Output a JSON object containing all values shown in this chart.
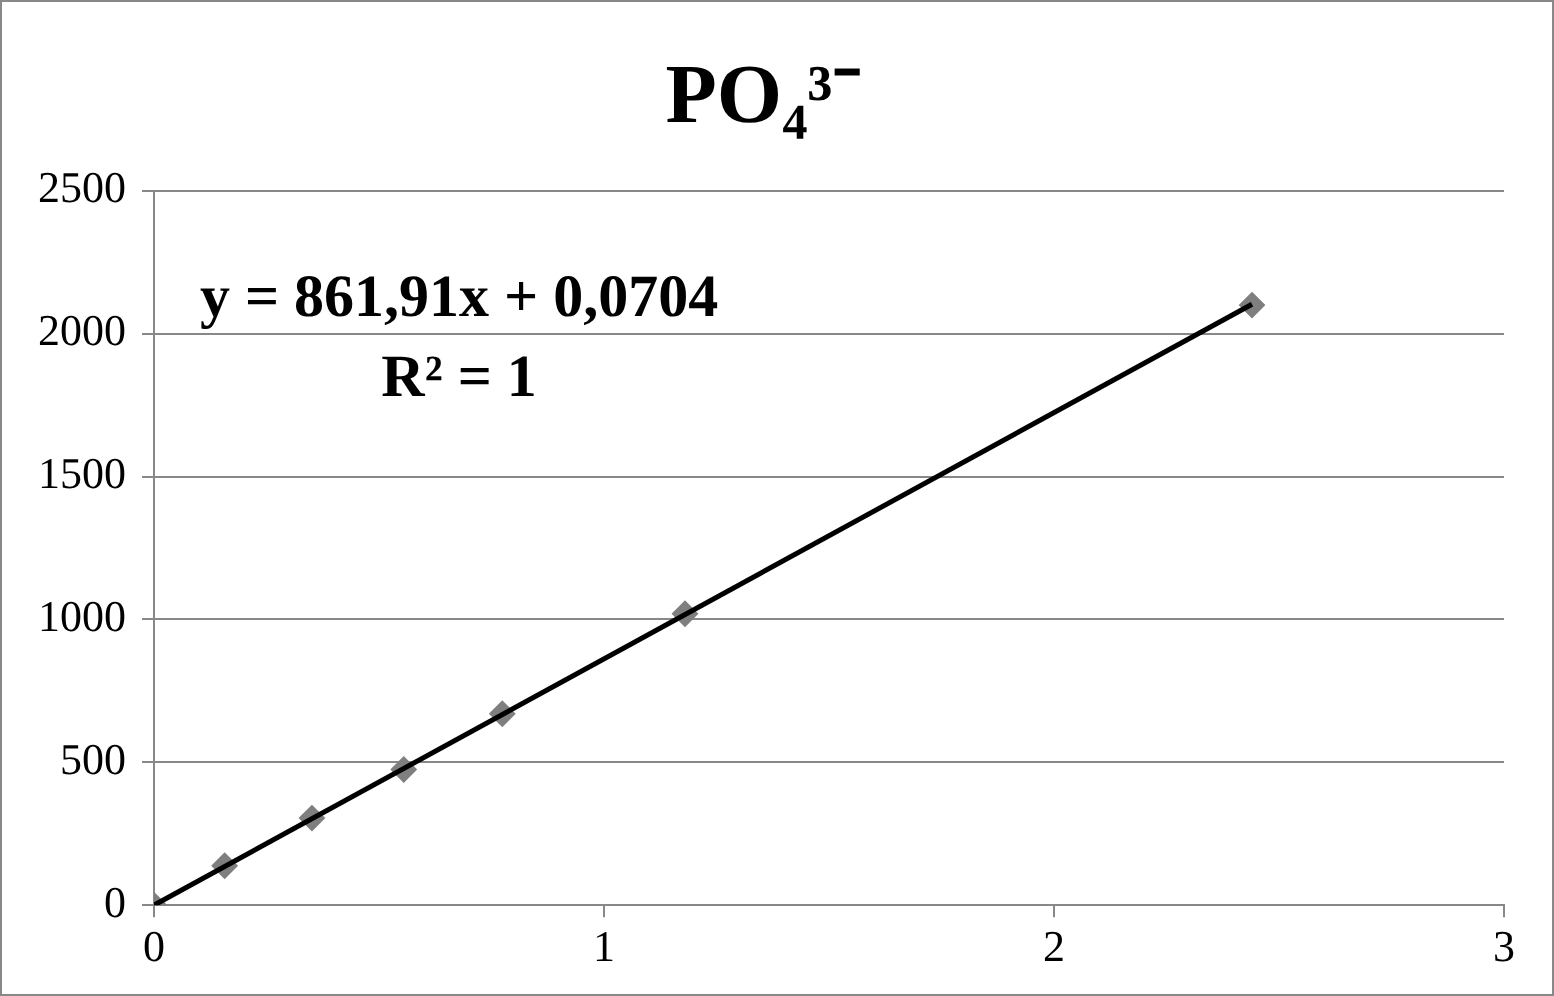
{
  "chart_data": {
    "type": "scatter",
    "title": "PO₄³⁻",
    "series": [
      {
        "type": "scatter",
        "color": "#7f7f7f",
        "x": [
          0,
          0.157,
          0.351,
          0.555,
          0.774,
          1.18,
          2.44
        ],
        "values": [
          0,
          138,
          305,
          475,
          670,
          1020,
          2100
        ],
        "marker": "diamond"
      },
      {
        "type": "line",
        "color": "#000000",
        "x": [
          0,
          2.44
        ],
        "values": [
          0,
          2103
        ],
        "marker": "none",
        "line_style": "solid"
      }
    ],
    "xlim": [
      0,
      3
    ],
    "xticks": [
      0,
      1,
      2,
      3
    ],
    "ylim": [
      0,
      2500
    ],
    "yticks": [
      0,
      500,
      1000,
      1500,
      2000,
      2500
    ],
    "grid": "y",
    "legend": false,
    "annotations": [
      "y = 861,91x + 0,0704",
      "R² = 1"
    ]
  }
}
